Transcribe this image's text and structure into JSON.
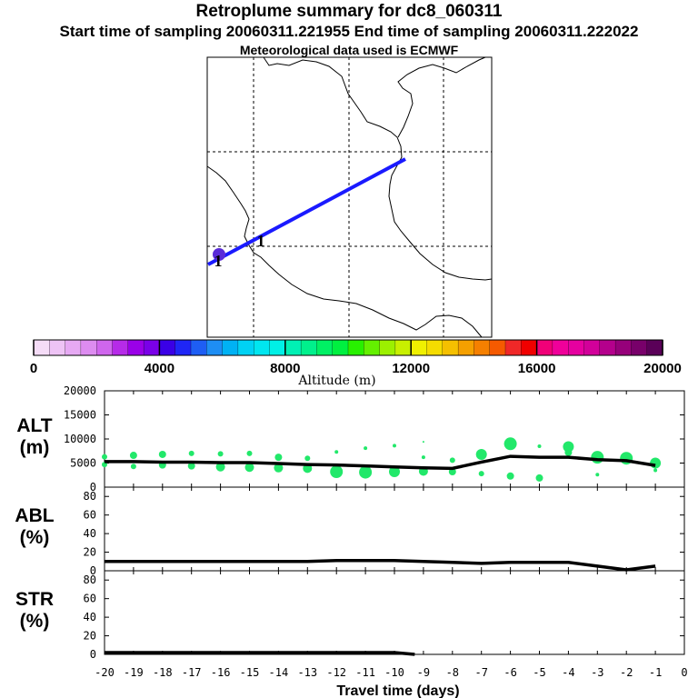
{
  "header": {
    "title": "Retroplume summary for dc8_060311",
    "sampling": "Start time of sampling 20060311.221955     End time of sampling 20060311.222022",
    "met": "Meteorological data used is ECMWF"
  },
  "map": {
    "plume_labels": [
      "1",
      "1"
    ],
    "colors": {
      "track": "#1a1aff",
      "marker": "#5a2bd8",
      "border": "#000000"
    }
  },
  "colorbar": {
    "label": "Altitude (m)",
    "tick_labels": [
      "0",
      "4000",
      "8000",
      "12000",
      "16000",
      "20000"
    ],
    "ticks": [
      0,
      4000,
      8000,
      12000,
      16000,
      20000
    ],
    "colors": [
      "#f5dcf7",
      "#eec3f5",
      "#e6a9f3",
      "#dd8cf0",
      "#cf66ed",
      "#b62be8",
      "#9a00e8",
      "#7a00e8",
      "#3a00e6",
      "#1f26f6",
      "#1e5ef4",
      "#1e8ef4",
      "#00b2f4",
      "#00d2f4",
      "#00e6f0",
      "#00f0e6",
      "#00f0b4",
      "#00f08c",
      "#00f064",
      "#00f040",
      "#28f000",
      "#64f000",
      "#9cf000",
      "#c8f000",
      "#f0f000",
      "#f5dc00",
      "#f5c000",
      "#f5a000",
      "#f58000",
      "#f55a00",
      "#f02828",
      "#f00000",
      "#f00078",
      "#f0009a",
      "#e600a0",
      "#d2009a",
      "#b4008c",
      "#96007a",
      "#78006a",
      "#5a0058"
    ]
  },
  "chart_data": [
    {
      "type": "line+scatter",
      "panel": "ALT",
      "ylabel": "ALT\n(m)",
      "ylabel_lines": [
        "ALT",
        "(m)"
      ],
      "ylim": [
        0,
        20000
      ],
      "yticks": [
        0,
        5000,
        10000,
        15000,
        20000
      ],
      "ytick_labels": [
        "0",
        "5000",
        "10000",
        "15000",
        "20000"
      ],
      "xlim": [
        -20,
        0
      ],
      "x": [
        -20,
        -19,
        -18,
        -17,
        -16,
        -15,
        -14,
        -13,
        -12,
        -11,
        -10,
        -9,
        -8,
        -7,
        -6,
        -5,
        -4,
        -3,
        -2,
        -1
      ],
      "line_values": [
        5300,
        5300,
        5200,
        5200,
        5100,
        5100,
        4900,
        4700,
        4600,
        4400,
        4200,
        4000,
        3900,
        5200,
        6400,
        6200,
        6200,
        5700,
        5500,
        4500
      ],
      "scatter_color": "#22e86a",
      "scatter_points": [
        {
          "x": -20,
          "y": 6300,
          "s": 3
        },
        {
          "x": -20,
          "y": 4700,
          "s": 3
        },
        {
          "x": -19,
          "y": 6600,
          "s": 4
        },
        {
          "x": -19,
          "y": 4300,
          "s": 3
        },
        {
          "x": -18,
          "y": 6800,
          "s": 4
        },
        {
          "x": -18,
          "y": 4600,
          "s": 4
        },
        {
          "x": -17,
          "y": 7000,
          "s": 3
        },
        {
          "x": -17,
          "y": 4400,
          "s": 4
        },
        {
          "x": -16,
          "y": 6900,
          "s": 3
        },
        {
          "x": -16,
          "y": 4200,
          "s": 5
        },
        {
          "x": -15,
          "y": 7000,
          "s": 3
        },
        {
          "x": -15,
          "y": 4100,
          "s": 5
        },
        {
          "x": -14,
          "y": 6200,
          "s": 4
        },
        {
          "x": -14,
          "y": 4000,
          "s": 5
        },
        {
          "x": -13,
          "y": 6000,
          "s": 3
        },
        {
          "x": -13,
          "y": 3900,
          "s": 5
        },
        {
          "x": -12,
          "y": 7300,
          "s": 2
        },
        {
          "x": -12,
          "y": 3200,
          "s": 7
        },
        {
          "x": -11,
          "y": 8100,
          "s": 2
        },
        {
          "x": -11,
          "y": 3100,
          "s": 7
        },
        {
          "x": -10,
          "y": 8600,
          "s": 2
        },
        {
          "x": -10,
          "y": 3200,
          "s": 6
        },
        {
          "x": -9,
          "y": 9400,
          "s": 1
        },
        {
          "x": -9,
          "y": 6200,
          "s": 2
        },
        {
          "x": -9,
          "y": 3300,
          "s": 5
        },
        {
          "x": -8,
          "y": 5600,
          "s": 3
        },
        {
          "x": -8,
          "y": 3200,
          "s": 4
        },
        {
          "x": -7,
          "y": 6800,
          "s": 6
        },
        {
          "x": -7,
          "y": 2800,
          "s": 3
        },
        {
          "x": -6,
          "y": 9000,
          "s": 7
        },
        {
          "x": -6,
          "y": 2300,
          "s": 4
        },
        {
          "x": -5,
          "y": 8500,
          "s": 2
        },
        {
          "x": -5,
          "y": 1900,
          "s": 4
        },
        {
          "x": -4,
          "y": 8400,
          "s": 6
        },
        {
          "x": -4,
          "y": 7200,
          "s": 4
        },
        {
          "x": -3,
          "y": 6200,
          "s": 7
        },
        {
          "x": -3,
          "y": 2600,
          "s": 2
        },
        {
          "x": -2,
          "y": 6000,
          "s": 7
        },
        {
          "x": -1,
          "y": 5000,
          "s": 6
        },
        {
          "x": -1,
          "y": 3500,
          "s": 2
        }
      ]
    },
    {
      "type": "line",
      "panel": "ABL",
      "ylabel_lines": [
        "ABL",
        "(%)"
      ],
      "ylim": [
        0,
        90
      ],
      "yticks": [
        0,
        20,
        40,
        60,
        80
      ],
      "ytick_labels": [
        "0",
        "20",
        "40",
        "60",
        "80"
      ],
      "xlim": [
        -20,
        0
      ],
      "x": [
        -20,
        -19,
        -18,
        -17,
        -16,
        -15,
        -14,
        -13,
        -12,
        -11,
        -10,
        -9,
        -8,
        -7,
        -6,
        -5,
        -4,
        -3,
        -2,
        -1
      ],
      "values": [
        10,
        10,
        10,
        10,
        10,
        10,
        10,
        10,
        11,
        11,
        11,
        10,
        9,
        8,
        9,
        9,
        9,
        5,
        1,
        5
      ]
    },
    {
      "type": "line",
      "panel": "STR",
      "ylabel_lines": [
        "STR",
        "(%)"
      ],
      "ylim": [
        0,
        90
      ],
      "yticks": [
        0,
        20,
        40,
        60,
        80
      ],
      "ytick_labels": [
        "0",
        "20",
        "40",
        "60",
        "80"
      ],
      "xlim": [
        -20,
        0
      ],
      "xlabel": "Travel time (days)",
      "xticks": [
        -20,
        -19,
        -18,
        -17,
        -16,
        -15,
        -14,
        -13,
        -12,
        -11,
        -10,
        -9,
        -8,
        -7,
        -6,
        -5,
        -4,
        -3,
        -2,
        -1,
        0
      ],
      "xtick_labels": [
        "-20",
        "-19",
        "-18",
        "-17",
        "-16",
        "-15",
        "-14",
        "-13",
        "-12",
        "-11",
        "-10",
        "-9",
        "-8",
        "-7",
        "-6",
        "-5",
        "-4",
        "-3",
        "-2",
        "-1",
        "0"
      ],
      "x": [
        -20,
        -19,
        -18,
        -17,
        -16,
        -15,
        -14,
        -13,
        -12,
        -11,
        -10,
        -9.3
      ],
      "values": [
        2,
        2,
        2,
        2,
        2,
        2,
        2,
        2,
        2,
        2,
        2,
        0
      ]
    }
  ]
}
